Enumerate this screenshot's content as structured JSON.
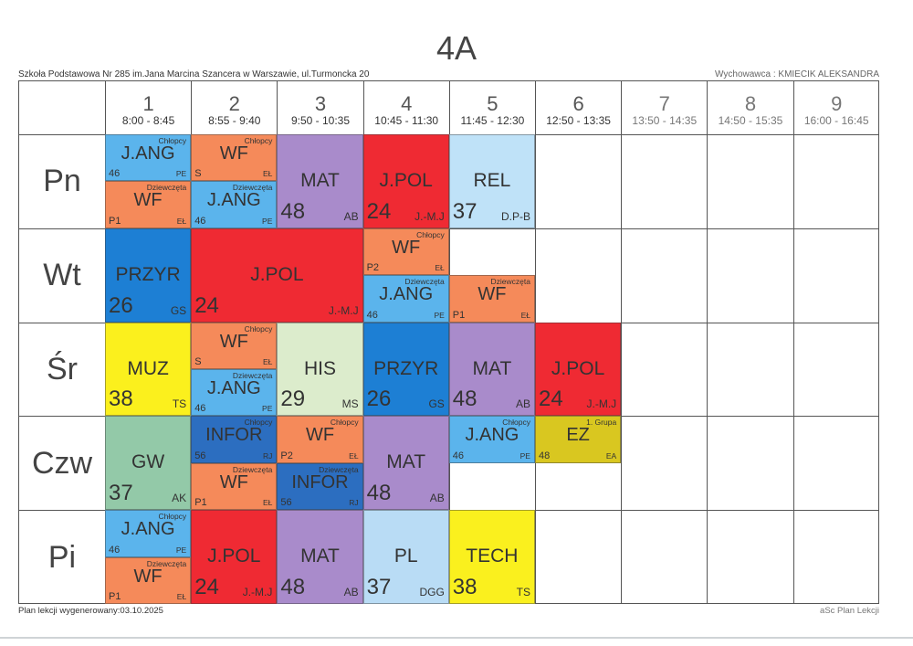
{
  "header": {
    "title": "4A",
    "school": "Szkoła Podstawowa Nr 285 im.Jana Marcina Szancera w Warszawie, ul.Turmoncka 20",
    "teacher": "Wychowawca : KMIECIK ALEKSANDRA"
  },
  "periods": [
    {
      "num": "1",
      "time": "8:00 - 8:45"
    },
    {
      "num": "2",
      "time": "8:55 - 9:40"
    },
    {
      "num": "3",
      "time": "9:50 - 10:35"
    },
    {
      "num": "4",
      "time": "10:45 - 11:30"
    },
    {
      "num": "5",
      "time": "11:45 - 12:30"
    },
    {
      "num": "6",
      "time": "12:50 - 13:35"
    },
    {
      "num": "7",
      "time": "13:50 - 14:35"
    },
    {
      "num": "8",
      "time": "14:50 - 15:35"
    },
    {
      "num": "9",
      "time": "16:00 - 16:45"
    }
  ],
  "days": [
    "Pn",
    "Wt",
    "Śr",
    "Czw",
    "Pi"
  ],
  "colors": {
    "j_ang": "#5bb4ec",
    "wf": "#f58a5a",
    "mat": "#a98bcb",
    "j_pol": "#ef2a33",
    "rel": "#bfe2f8",
    "przyr": "#1d7fd4",
    "muz": "#fbf01d",
    "his": "#dceccc",
    "gw": "#93c9a8",
    "infor": "#2c6ec0",
    "ez": "#d9c720",
    "pl": "#b9dcf5",
    "tech": "#faf01e"
  },
  "lessons": [
    {
      "day": 0,
      "period": 1,
      "span": 1,
      "part": "top",
      "subject": "J.ANG",
      "room": "46",
      "teacher": "PE",
      "group": "Chłopcy",
      "color": "j_ang"
    },
    {
      "day": 0,
      "period": 1,
      "span": 1,
      "part": "bottom",
      "subject": "WF",
      "room": "P1",
      "teacher": "EŁ",
      "group": "Dziewczęta",
      "color": "wf"
    },
    {
      "day": 0,
      "period": 2,
      "span": 1,
      "part": "top",
      "subject": "WF",
      "room": "S",
      "teacher": "EŁ",
      "group": "Chłopcy",
      "color": "wf"
    },
    {
      "day": 0,
      "period": 2,
      "span": 1,
      "part": "bottom",
      "subject": "J.ANG",
      "room": "46",
      "teacher": "PE",
      "group": "Dziewczęta",
      "color": "j_ang"
    },
    {
      "day": 0,
      "period": 3,
      "span": 1,
      "part": "full",
      "subject": "MAT",
      "room": "48",
      "teacher": "AB",
      "group": "",
      "color": "mat"
    },
    {
      "day": 0,
      "period": 4,
      "span": 1,
      "part": "full",
      "subject": "J.POL",
      "room": "24",
      "teacher": "J.-M.J",
      "group": "",
      "color": "j_pol"
    },
    {
      "day": 0,
      "period": 5,
      "span": 1,
      "part": "full",
      "subject": "REL",
      "room": "37",
      "teacher": "D.P-B",
      "group": "",
      "color": "rel"
    },
    {
      "day": 1,
      "period": 1,
      "span": 1,
      "part": "full",
      "subject": "PRZYR",
      "room": "26",
      "teacher": "GS",
      "group": "",
      "color": "przyr"
    },
    {
      "day": 1,
      "period": 2,
      "span": 2,
      "part": "full",
      "subject": "J.POL",
      "room": "24",
      "teacher": "J.-M.J",
      "group": "",
      "color": "j_pol"
    },
    {
      "day": 1,
      "period": 4,
      "span": 1,
      "part": "top",
      "subject": "WF",
      "room": "P2",
      "teacher": "EŁ",
      "group": "Chłopcy",
      "color": "wf"
    },
    {
      "day": 1,
      "period": 4,
      "span": 1,
      "part": "bottom",
      "subject": "J.ANG",
      "room": "46",
      "teacher": "PE",
      "group": "Dziewczęta",
      "color": "j_ang"
    },
    {
      "day": 1,
      "period": 5,
      "span": 1,
      "part": "bottom",
      "subject": "WF",
      "room": "P1",
      "teacher": "EŁ",
      "group": "Dziewczęta",
      "color": "wf"
    },
    {
      "day": 2,
      "period": 1,
      "span": 1,
      "part": "full",
      "subject": "MUZ",
      "room": "38",
      "teacher": "TS",
      "group": "",
      "color": "muz"
    },
    {
      "day": 2,
      "period": 2,
      "span": 1,
      "part": "top",
      "subject": "WF",
      "room": "S",
      "teacher": "EŁ",
      "group": "Chłopcy",
      "color": "wf"
    },
    {
      "day": 2,
      "period": 2,
      "span": 1,
      "part": "bottom",
      "subject": "J.ANG",
      "room": "46",
      "teacher": "PE",
      "group": "Dziewczęta",
      "color": "j_ang"
    },
    {
      "day": 2,
      "period": 3,
      "span": 1,
      "part": "full",
      "subject": "HIS",
      "room": "29",
      "teacher": "MS",
      "group": "",
      "color": "his"
    },
    {
      "day": 2,
      "period": 4,
      "span": 1,
      "part": "full",
      "subject": "PRZYR",
      "room": "26",
      "teacher": "GS",
      "group": "",
      "color": "przyr"
    },
    {
      "day": 2,
      "period": 5,
      "span": 1,
      "part": "full",
      "subject": "MAT",
      "room": "48",
      "teacher": "AB",
      "group": "",
      "color": "mat"
    },
    {
      "day": 2,
      "period": 6,
      "span": 1,
      "part": "full",
      "subject": "J.POL",
      "room": "24",
      "teacher": "J.-M.J",
      "group": "",
      "color": "j_pol"
    },
    {
      "day": 3,
      "period": 1,
      "span": 1,
      "part": "full",
      "subject": "GW",
      "room": "37",
      "teacher": "AK",
      "group": "",
      "color": "gw"
    },
    {
      "day": 3,
      "period": 2,
      "span": 1,
      "part": "top",
      "subject": "INFOR",
      "room": "56",
      "teacher": "RJ",
      "group": "Chłopcy",
      "color": "infor"
    },
    {
      "day": 3,
      "period": 2,
      "span": 1,
      "part": "bottom",
      "subject": "WF",
      "room": "P1",
      "teacher": "EŁ",
      "group": "Dziewczęta",
      "color": "wf"
    },
    {
      "day": 3,
      "period": 3,
      "span": 1,
      "part": "top",
      "subject": "WF",
      "room": "P2",
      "teacher": "EŁ",
      "group": "Chłopcy",
      "color": "wf"
    },
    {
      "day": 3,
      "period": 3,
      "span": 1,
      "part": "bottom",
      "subject": "INFOR",
      "room": "56",
      "teacher": "RJ",
      "group": "Dziewczęta",
      "color": "infor"
    },
    {
      "day": 3,
      "period": 4,
      "span": 1,
      "part": "full",
      "subject": "MAT",
      "room": "48",
      "teacher": "AB",
      "group": "",
      "color": "mat"
    },
    {
      "day": 3,
      "period": 5,
      "span": 1,
      "part": "top",
      "subject": "J.ANG",
      "room": "46",
      "teacher": "PE",
      "group": "Chłopcy",
      "color": "j_ang"
    },
    {
      "day": 3,
      "period": 6,
      "span": 1,
      "part": "top",
      "subject": "EZ",
      "room": "48",
      "teacher": "EA",
      "group": "1. Grupa",
      "color": "ez"
    },
    {
      "day": 4,
      "period": 1,
      "span": 1,
      "part": "top",
      "subject": "J.ANG",
      "room": "46",
      "teacher": "PE",
      "group": "Chłopcy",
      "color": "j_ang"
    },
    {
      "day": 4,
      "period": 1,
      "span": 1,
      "part": "bottom",
      "subject": "WF",
      "room": "P1",
      "teacher": "EŁ",
      "group": "Dziewczęta",
      "color": "wf"
    },
    {
      "day": 4,
      "period": 2,
      "span": 1,
      "part": "full",
      "subject": "J.POL",
      "room": "24",
      "teacher": "J.-M.J",
      "group": "",
      "color": "j_pol"
    },
    {
      "day": 4,
      "period": 3,
      "span": 1,
      "part": "full",
      "subject": "MAT",
      "room": "48",
      "teacher": "AB",
      "group": "",
      "color": "mat"
    },
    {
      "day": 4,
      "period": 4,
      "span": 1,
      "part": "full",
      "subject": "PL",
      "room": "37",
      "teacher": "DGG",
      "group": "",
      "color": "pl"
    },
    {
      "day": 4,
      "period": 5,
      "span": 1,
      "part": "full",
      "subject": "TECH",
      "room": "38",
      "teacher": "TS",
      "group": "",
      "color": "tech"
    }
  ],
  "footer": {
    "generated": "Plan lekcji wygenerowany:03.10.2025",
    "app": "aSc Plan Lekcji"
  }
}
